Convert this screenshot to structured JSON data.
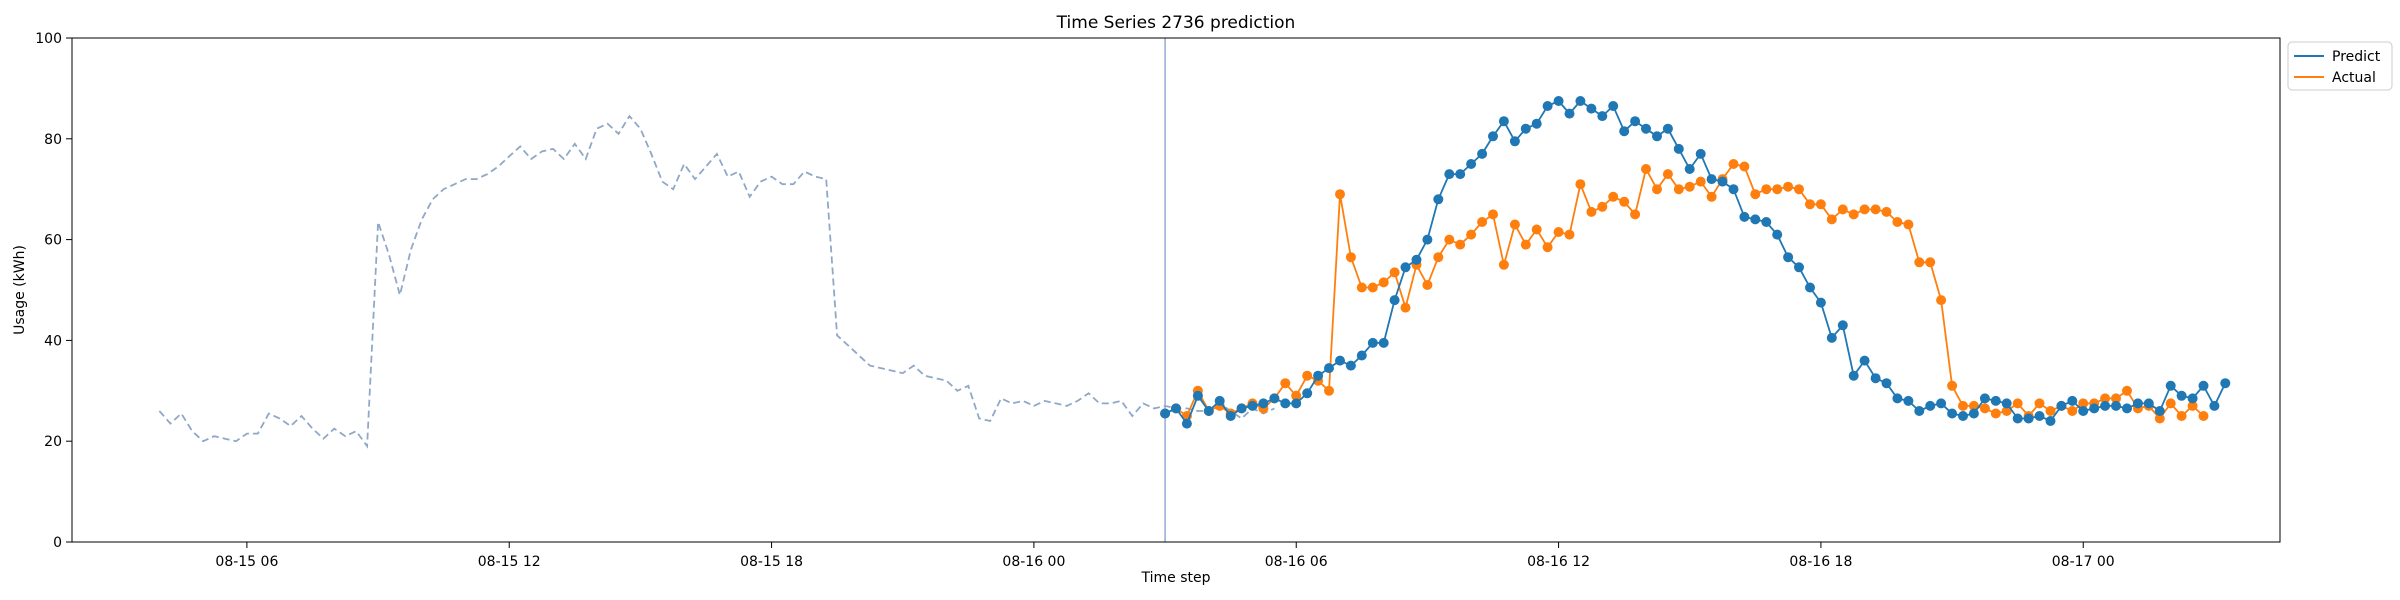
{
  "chart_data": {
    "type": "line",
    "title": "Time Series 2736 prediction",
    "xlabel": "Time step",
    "ylabel": "Usage (kWh)",
    "ylim": [
      0,
      100
    ],
    "yticks": [
      0,
      20,
      40,
      60,
      80,
      100
    ],
    "x_start": "2023-08-15 02:00",
    "x_end": "2023-08-17 04:30",
    "x_step_minutes": 15,
    "xtick_labels": [
      {
        "time": "2023-08-15 06:00",
        "label": "08-15 06"
      },
      {
        "time": "2023-08-15 12:00",
        "label": "08-15 12"
      },
      {
        "time": "2023-08-15 18:00",
        "label": "08-15 18"
      },
      {
        "time": "2023-08-16 00:00",
        "label": "08-16 00"
      },
      {
        "time": "2023-08-16 06:00",
        "label": "08-16 06"
      },
      {
        "time": "2023-08-16 12:00",
        "label": "08-16 12"
      },
      {
        "time": "2023-08-16 18:00",
        "label": "08-16 18"
      },
      {
        "time": "2023-08-17 00:00",
        "label": "08-17 00"
      }
    ],
    "vline_time": "2023-08-16 03:00",
    "legend_position": "top-right",
    "history": {
      "style": "dashed",
      "color": "#8fa8c8",
      "start": "2023-08-15 04:00",
      "values": [
        26,
        23.5,
        25.5,
        22,
        20,
        21,
        20.5,
        20,
        21.5,
        21.5,
        25.5,
        24.5,
        23,
        25,
        22.5,
        20.5,
        22.5,
        21,
        22,
        19,
        63.5,
        57,
        49,
        58,
        64,
        68,
        70,
        71,
        72,
        72,
        73,
        74.5,
        76.5,
        78.5,
        76,
        77.5,
        78,
        76,
        79,
        76,
        82,
        83,
        81,
        84.5,
        82,
        77,
        71.5,
        70,
        75,
        72,
        74.5,
        77,
        72.5,
        73.5,
        68.5,
        71.5,
        72.5,
        71,
        71,
        73.5,
        72.5,
        72,
        41,
        39,
        37,
        35,
        34.5,
        34,
        33.5,
        35,
        33,
        32.5,
        32,
        30,
        31,
        24.5,
        24,
        28.5,
        27.5,
        28,
        27,
        28,
        27.5,
        27,
        28,
        29.5,
        27.5,
        27.5,
        28,
        25,
        27.5,
        26.5,
        27,
        26.5,
        26.5,
        26,
        26,
        27.5,
        26,
        24.5,
        26.5,
        25.5,
        26.5
      ]
    },
    "series": [
      {
        "name": "Predict",
        "color": "#1f77b4",
        "start": "2023-08-16 03:00",
        "values": [
          25.5,
          26.5,
          23.5,
          29,
          26,
          28,
          25,
          26.5,
          27,
          27.5,
          28.5,
          27.5,
          27.5,
          29.5,
          33,
          34.5,
          36,
          35,
          37,
          39.5,
          39.5,
          48,
          54.5,
          56,
          60,
          68,
          73,
          73,
          75,
          77,
          80.5,
          83.5,
          79.5,
          82,
          83,
          86.5,
          87.5,
          85,
          87.5,
          86,
          84.5,
          86.5,
          81.5,
          83.5,
          82,
          80.5,
          82,
          78,
          74,
          77,
          72,
          71.5,
          70,
          64.5,
          64,
          63.5,
          61,
          56.5,
          54.5,
          50.5,
          47.5,
          40.5,
          43,
          33,
          36,
          32.5,
          31.5,
          28.5,
          28,
          26,
          27,
          27.5,
          25.5,
          25,
          25.5,
          28.5,
          28,
          27.5,
          24.5,
          24.5,
          25,
          24,
          27,
          28,
          26,
          26.5,
          27,
          27,
          26.5,
          27.5,
          27.5,
          26,
          31,
          29,
          28.5,
          31,
          27,
          31.5
        ]
      },
      {
        "name": "Actual",
        "color": "#ff7f0e",
        "start": "2023-08-16 03:00",
        "values": [
          25.5,
          26.5,
          25,
          30,
          26,
          27,
          25.5,
          26.5,
          27.5,
          26.5,
          28.5,
          31.5,
          29,
          33,
          32,
          30,
          69,
          56.5,
          50.5,
          50.5,
          51.5,
          53.5,
          46.5,
          55,
          51,
          56.5,
          60,
          59,
          61,
          63.5,
          65,
          55,
          63,
          59,
          62,
          58.5,
          61.5,
          61,
          71,
          65.5,
          66.5,
          68.5,
          67.5,
          65,
          74,
          70,
          73,
          70,
          70.5,
          71.5,
          68.5,
          72,
          75,
          74.5,
          69,
          70,
          70,
          70.5,
          70,
          67,
          67,
          64,
          66,
          65,
          66,
          66,
          65.5,
          63.5,
          63,
          55.5,
          55.5,
          48,
          31,
          27,
          27,
          26.5,
          25.5,
          26,
          27.5,
          25,
          27.5,
          26,
          27,
          26,
          27.5,
          27.5,
          28.5,
          28.5,
          30,
          26.5,
          27,
          24.5,
          27.5,
          25,
          27,
          25
        ]
      }
    ]
  }
}
